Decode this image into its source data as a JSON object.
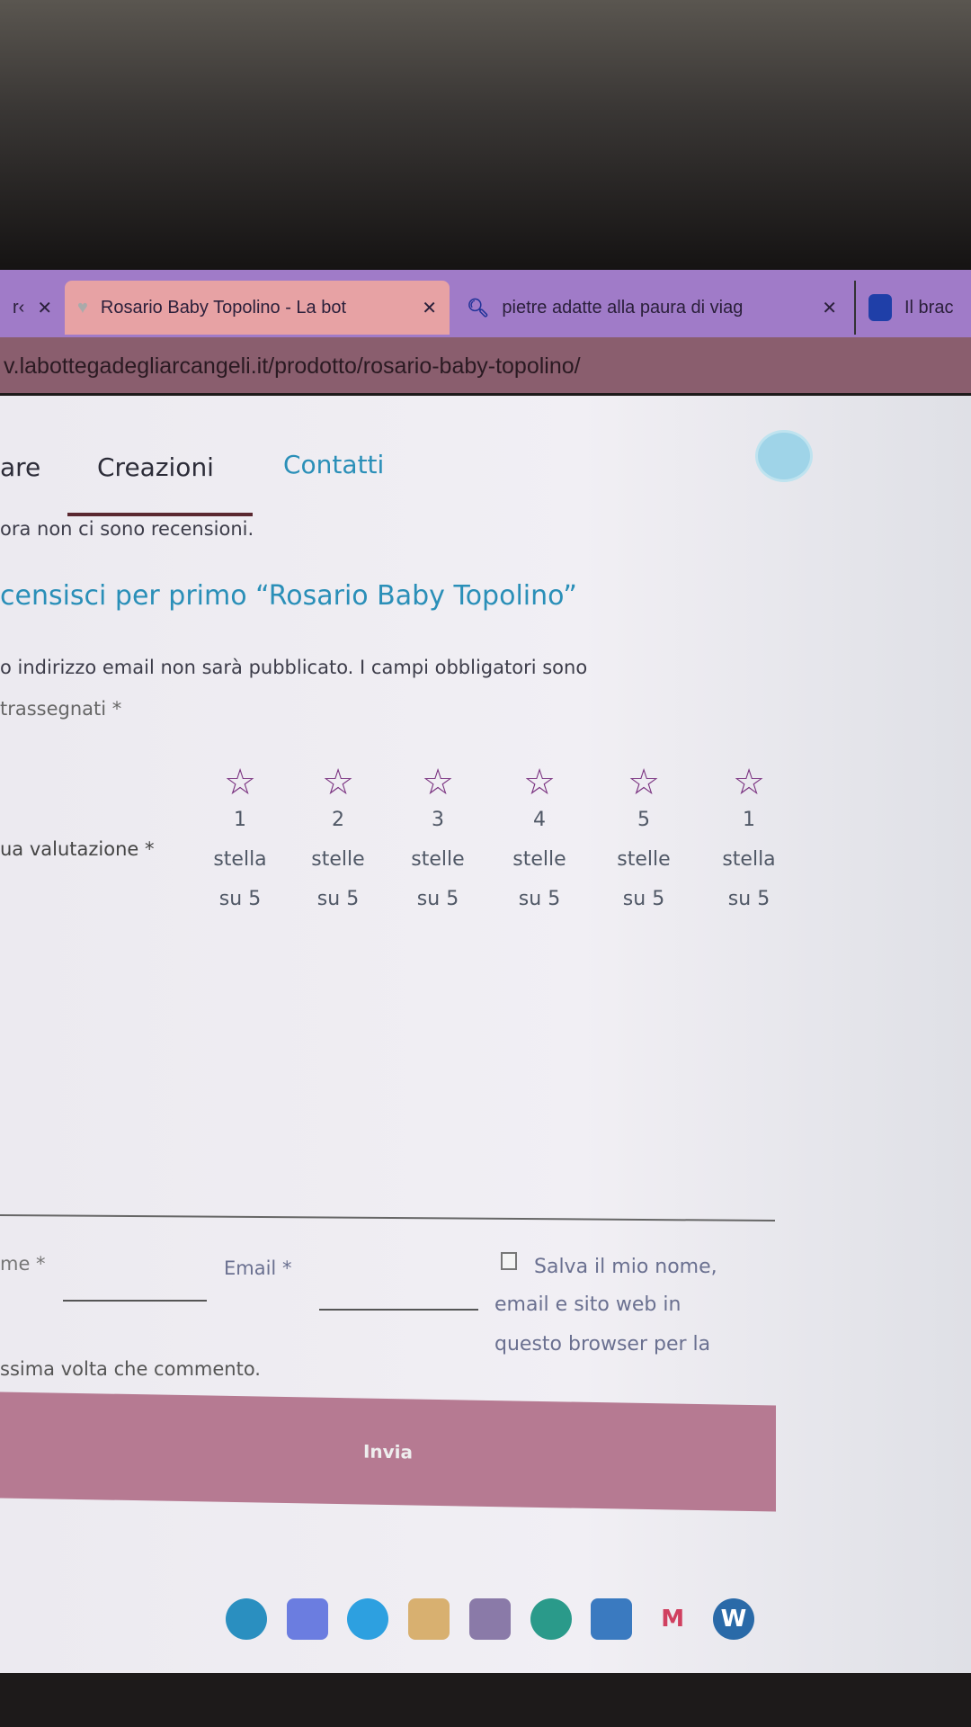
{
  "browser": {
    "tabs": [
      {
        "label": "r‹",
        "close": "✕"
      },
      {
        "label": "Rosario Baby Topolino - La bot",
        "close": "✕",
        "active": true
      },
      {
        "label": "pietre adatte alla paura di viag",
        "close": "✕"
      },
      {
        "label": "Il brac"
      }
    ],
    "url": "v.labottegadegliarcangeli.it/prodotto/rosario-baby-topolino/"
  },
  "nav": {
    "items": [
      "are",
      "Creazioni",
      "Contatti"
    ]
  },
  "reviews": {
    "empty": "ora non ci sono recensioni.",
    "heading": "censisci per primo “Rosario Baby Topolino”",
    "notice_line1": "o indirizzo email non sarà pubblicato. I campi obbligatori sono",
    "notice_line2": "trassegnati *",
    "rating_label": "ua valutazione *",
    "ratings": [
      {
        "n": "1",
        "word": "stella",
        "of": "su 5"
      },
      {
        "n": "2",
        "word": "stelle",
        "of": "su 5"
      },
      {
        "n": "3",
        "word": "stelle",
        "of": "su 5"
      },
      {
        "n": "4",
        "word": "stelle",
        "of": "su 5"
      },
      {
        "n": "5",
        "word": "stelle",
        "of": "su 5"
      },
      {
        "n": "1",
        "word": "stella",
        "of": "su 5"
      }
    ],
    "name_label": "me *",
    "email_label": "Email *",
    "save_line1": "Salva il mio nome,",
    "save_line2": "email e sito web in",
    "save_line3": "questo browser per la",
    "save_line4": "ssima volta che commento.",
    "submit": "Invia"
  },
  "colors": {
    "accent": "#2a8fb8",
    "button": "#b67a92",
    "star": "#7a3280",
    "tabbar": "#a07bc8"
  }
}
